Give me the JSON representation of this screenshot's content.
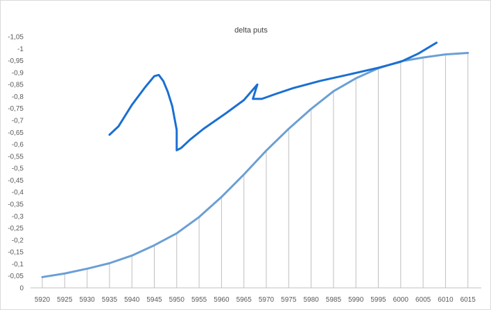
{
  "chart_data": {
    "type": "line",
    "title": "delta puts",
    "xlabel": "",
    "ylabel": "",
    "x": [
      5920,
      5925,
      5930,
      5935,
      5940,
      5945,
      5950,
      5955,
      5960,
      5965,
      5970,
      5975,
      5980,
      5985,
      5990,
      5995,
      6000,
      6005,
      6010,
      6015
    ],
    "x_tick_labels": [
      "5920",
      "5925",
      "5930",
      "5935",
      "5940",
      "5945",
      "5950",
      "5955",
      "5960",
      "5965",
      "5970",
      "5975",
      "5980",
      "5985",
      "5990",
      "5995",
      "6000",
      "6005",
      "6010",
      "6015"
    ],
    "y_tick_labels": [
      "0",
      "-0,05",
      "-0,1",
      "-0,15",
      "-0,2",
      "-0,25",
      "-0,3",
      "-0,35",
      "-0,4",
      "-0,45",
      "-0,5",
      "-0,55",
      "-0,6",
      "-0,65",
      "-0,7",
      "-0,75",
      "-0,8",
      "-0,85",
      "-0,9",
      "-0,95",
      "-1",
      "-1,05"
    ],
    "ylim": [
      0,
      -1.05
    ],
    "y_axis_inverted": true,
    "grid": "vertical drop lines at each category",
    "series": [
      {
        "values": [
          -0.045,
          -0.06,
          -0.08,
          -0.103,
          -0.135,
          -0.178,
          -0.228,
          -0.296,
          -0.38,
          -0.474,
          -0.574,
          -0.665,
          -0.748,
          -0.822,
          -0.876,
          -0.918,
          -0.947,
          -0.963,
          -0.976,
          -0.982
        ],
        "color": "#6a9fd4"
      }
    ],
    "annotations": [
      {
        "type": "freehand-stroke",
        "color": "#1a6fd1",
        "points": [
          [
            5935,
            -0.64
          ],
          [
            5937,
            -0.675
          ],
          [
            5940,
            -0.765
          ],
          [
            5943,
            -0.84
          ],
          [
            5945,
            -0.885
          ],
          [
            5946,
            -0.89
          ],
          [
            5947,
            -0.865
          ],
          [
            5948,
            -0.82
          ],
          [
            5949,
            -0.76
          ],
          [
            5950,
            -0.66
          ],
          [
            5950,
            -0.575
          ],
          [
            5951,
            -0.585
          ],
          [
            5953,
            -0.62
          ],
          [
            5956,
            -0.665
          ],
          [
            5961,
            -0.73
          ],
          [
            5965,
            -0.785
          ],
          [
            5968,
            -0.85
          ],
          [
            5967,
            -0.79
          ],
          [
            5969,
            -0.79
          ],
          [
            5972,
            -0.81
          ],
          [
            5976,
            -0.835
          ],
          [
            5982,
            -0.865
          ],
          [
            5988,
            -0.89
          ],
          [
            5995,
            -0.92
          ],
          [
            6000,
            -0.945
          ],
          [
            6004,
            -0.98
          ],
          [
            6008,
            -1.025
          ]
        ]
      }
    ]
  }
}
